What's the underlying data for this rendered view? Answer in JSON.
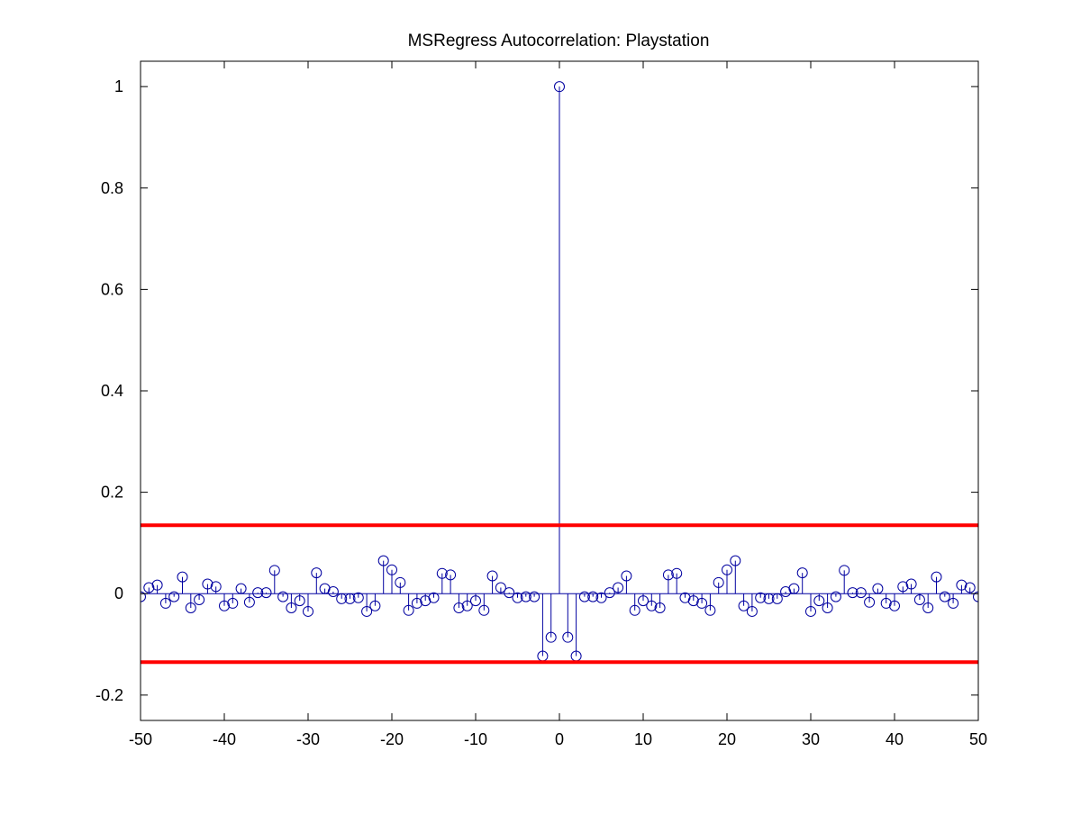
{
  "chart_data": {
    "type": "stem",
    "title": "MSRegress Autocorrelation: Playstation",
    "xlabel": "",
    "ylabel": "",
    "xlim": [
      -50,
      50
    ],
    "ylim": [
      -0.25,
      1.05
    ],
    "x_ticks": [
      -50,
      -40,
      -30,
      -20,
      -10,
      0,
      10,
      20,
      30,
      40,
      50
    ],
    "y_ticks": [
      -0.2,
      0,
      0.2,
      0.4,
      0.6,
      0.8,
      1
    ],
    "x_tick_labels": [
      "-50",
      "-40",
      "-30",
      "-20",
      "-10",
      "0",
      "10",
      "20",
      "30",
      "40",
      "50"
    ],
    "y_tick_labels": [
      "-0.2",
      "0",
      "0.2",
      "0.4",
      "0.6",
      "0.8",
      "1"
    ],
    "grid": false,
    "legend": "none",
    "series": [
      {
        "color": "#0000a0",
        "marker": "open-circle",
        "x": [
          -50,
          -49,
          -48,
          -47,
          -46,
          -45,
          -44,
          -43,
          -42,
          -41,
          -40,
          -39,
          -38,
          -37,
          -36,
          -35,
          -34,
          -33,
          -32,
          -31,
          -30,
          -29,
          -28,
          -27,
          -26,
          -25,
          -24,
          -23,
          -22,
          -21,
          -20,
          -19,
          -18,
          -17,
          -16,
          -15,
          -14,
          -13,
          -12,
          -11,
          -10,
          -9,
          -8,
          -7,
          -6,
          -5,
          -4,
          -3,
          -2,
          -1,
          0,
          1,
          2,
          3,
          4,
          5,
          6,
          7,
          8,
          9,
          10,
          11,
          12,
          13,
          14,
          15,
          16,
          17,
          18,
          19,
          20,
          21,
          22,
          23,
          24,
          25,
          26,
          27,
          28,
          29,
          30,
          31,
          32,
          33,
          34,
          35,
          36,
          37,
          38,
          39,
          40,
          41,
          42,
          43,
          44,
          45,
          46,
          47,
          48,
          49,
          50
        ],
        "y": [
          -0.006,
          0.012,
          0.017,
          -0.019,
          -0.006,
          0.033,
          -0.028,
          -0.012,
          0.019,
          0.014,
          -0.024,
          -0.019,
          0.01,
          -0.017,
          0.002,
          0.002,
          0.046,
          -0.006,
          -0.028,
          -0.014,
          -0.035,
          0.041,
          0.01,
          0.004,
          -0.01,
          -0.01,
          -0.008,
          -0.035,
          -0.024,
          0.065,
          0.047,
          0.022,
          -0.033,
          -0.019,
          -0.014,
          -0.008,
          0.04,
          0.037,
          -0.028,
          -0.024,
          -0.014,
          -0.033,
          0.035,
          0.012,
          0.002,
          -0.008,
          -0.006,
          -0.006,
          -0.123,
          -0.086,
          1.0,
          -0.086,
          -0.123,
          -0.006,
          -0.006,
          -0.008,
          0.002,
          0.012,
          0.035,
          -0.033,
          -0.014,
          -0.024,
          -0.028,
          0.037,
          0.04,
          -0.008,
          -0.014,
          -0.019,
          -0.033,
          0.022,
          0.047,
          0.065,
          -0.024,
          -0.035,
          -0.008,
          -0.01,
          -0.01,
          0.004,
          0.01,
          0.041,
          -0.035,
          -0.014,
          -0.028,
          -0.006,
          0.046,
          0.002,
          0.002,
          -0.017,
          0.01,
          -0.019,
          -0.024,
          0.014,
          0.019,
          -0.012,
          -0.028,
          0.033,
          -0.006,
          -0.019,
          0.017,
          0.012,
          -0.006
        ]
      }
    ],
    "reference_lines": [
      {
        "y": 0.135,
        "color": "#ff0000"
      },
      {
        "y": -0.135,
        "color": "#ff0000"
      }
    ]
  },
  "colors": {
    "stem": "#0000a0",
    "bounds": "#ff0000",
    "axes": "#000000",
    "background": "#ffffff"
  }
}
